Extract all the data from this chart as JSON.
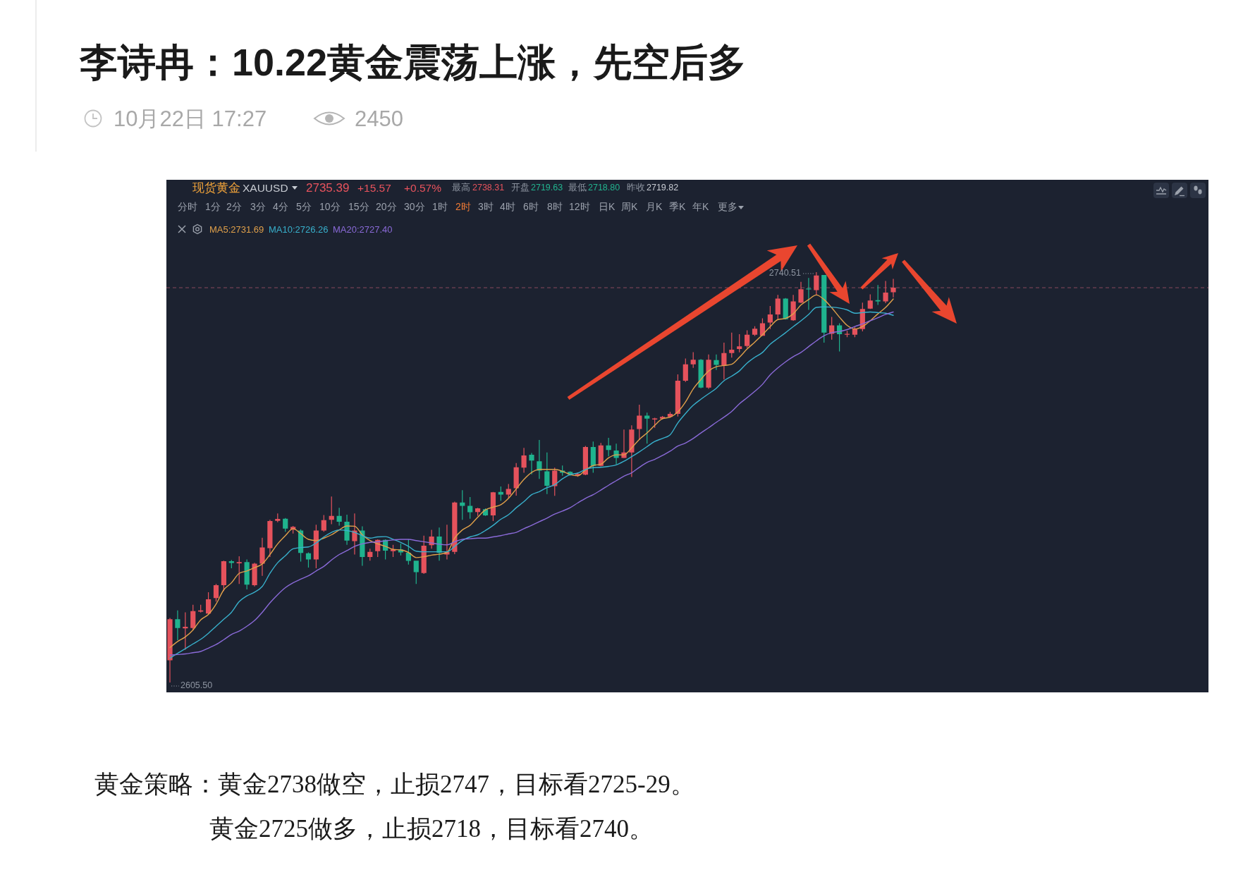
{
  "chart_data": {
    "type": "candlestick",
    "title": "李诗冉：10.22黄金震荡上涨，先空后多",
    "categories": [
      null,
      null,
      null,
      null,
      null,
      null,
      null,
      null,
      null,
      null,
      null,
      null,
      null,
      null,
      null,
      null,
      null,
      null,
      null,
      null,
      null,
      null,
      null,
      null,
      null,
      null,
      null,
      null,
      null,
      null,
      null,
      null,
      null,
      null,
      null,
      null,
      null,
      null,
      null,
      null,
      null,
      null,
      null,
      null,
      null,
      null,
      null,
      null,
      null,
      null,
      null,
      null,
      null,
      null,
      null,
      null,
      null,
      null,
      null,
      null,
      null,
      null,
      null,
      null,
      null,
      null,
      null,
      null,
      null,
      null,
      null,
      null,
      null,
      null,
      null,
      null,
      null,
      null,
      null,
      null,
      null,
      null,
      null,
      null,
      null,
      null,
      null,
      null,
      null,
      null,
      null,
      null,
      null,
      null,
      null
    ],
    "ohlc": [
      [
        2612.8,
        2626.7,
        2605.5,
        2626.3
      ],
      [
        2626.3,
        2629.2,
        2619.4,
        2623.4
      ],
      [
        2623.3,
        2628.6,
        2616.3,
        2623.8
      ],
      [
        2623.4,
        2631.1,
        2622.8,
        2629.0
      ],
      [
        2628.8,
        2631.1,
        2628.5,
        2629.2
      ],
      [
        2628.2,
        2635.2,
        2627.9,
        2632.9
      ],
      [
        2633.3,
        2637.9,
        2632.1,
        2637.5
      ],
      [
        2637.5,
        2645.6,
        2635.6,
        2645.4
      ],
      [
        2645.4,
        2645.8,
        2643.1,
        2644.8
      ],
      [
        2644.7,
        2647.0,
        2637.9,
        2645.1
      ],
      [
        2645.1,
        2646.0,
        2636.1,
        2637.7
      ],
      [
        2637.5,
        2644.9,
        2637.1,
        2644.6
      ],
      [
        2644.6,
        2653.1,
        2640.6,
        2649.9
      ],
      [
        2649.7,
        2659.0,
        2646.8,
        2658.6
      ],
      [
        2658.7,
        2661.1,
        2658.2,
        2659.3
      ],
      [
        2659.4,
        2659.6,
        2655.1,
        2656.1
      ],
      [
        2655.8,
        2657.0,
        2654.5,
        2656.7
      ],
      [
        2655.5,
        2655.9,
        2645.3,
        2648.1
      ],
      [
        2648.0,
        2648.3,
        2643.3,
        2646.0
      ],
      [
        2646.0,
        2657.4,
        2643.1,
        2655.5
      ],
      [
        2655.5,
        2660.6,
        2655.1,
        2658.9
      ],
      [
        2659.0,
        2666.7,
        2657.6,
        2660.3
      ],
      [
        2660.3,
        2663.0,
        2657.1,
        2658.4
      ],
      [
        2658.4,
        2660.7,
        2650.8,
        2652.2
      ],
      [
        2652.0,
        2661.1,
        2647.6,
        2655.5
      ],
      [
        2655.5,
        2656.9,
        2643.9,
        2646.8
      ],
      [
        2646.8,
        2649.5,
        2645.6,
        2648.5
      ],
      [
        2648.7,
        2652.6,
        2646.8,
        2652.4
      ],
      [
        2652.4,
        2652.6,
        2646.0,
        2648.9
      ],
      [
        2648.7,
        2650.8,
        2646.8,
        2649.3
      ],
      [
        2649.3,
        2651.2,
        2647.3,
        2648.3
      ],
      [
        2648.2,
        2652.6,
        2644.3,
        2645.5
      ],
      [
        2645.6,
        2645.6,
        2637.9,
        2641.8
      ],
      [
        2641.5,
        2653.8,
        2641.2,
        2650.5
      ],
      [
        2650.7,
        2655.7,
        2649.5,
        2653.5
      ],
      [
        2653.5,
        2656.5,
        2645.6,
        2648.2
      ],
      [
        2647.6,
        2657.4,
        2646.0,
        2648.5
      ],
      [
        2648.5,
        2665.0,
        2647.7,
        2664.7
      ],
      [
        2664.7,
        2668.8,
        2659.0,
        2663.6
      ],
      [
        2663.6,
        2666.5,
        2659.4,
        2661.5
      ],
      [
        2661.6,
        2663.0,
        2660.3,
        2662.8
      ],
      [
        2662.5,
        2662.8,
        2660.3,
        2660.5
      ],
      [
        2660.5,
        2668.2,
        2658.6,
        2668.1
      ],
      [
        2668.2,
        2670.0,
        2665.3,
        2667.3
      ],
      [
        2667.3,
        2670.8,
        2666.1,
        2669.2
      ],
      [
        2669.4,
        2677.7,
        2667.0,
        2676.3
      ],
      [
        2676.2,
        2682.7,
        2674.5,
        2680.2
      ],
      [
        2680.4,
        2681.0,
        2674.0,
        2678.5
      ],
      [
        2678.3,
        2685.3,
        2672.5,
        2675.2
      ],
      [
        2675.0,
        2681.2,
        2667.5,
        2670.2
      ],
      [
        2670.1,
        2676.2,
        2666.9,
        2675.2
      ],
      [
        2675.2,
        2676.9,
        2673.5,
        2674.5
      ],
      [
        2674.8,
        2675.0,
        2673.5,
        2673.9
      ],
      [
        2673.7,
        2674.6,
        2673.2,
        2674.1
      ],
      [
        2673.9,
        2683.3,
        2673.7,
        2683.0
      ],
      [
        2683.0,
        2684.8,
        2674.5,
        2676.8
      ],
      [
        2676.8,
        2684.3,
        2676.6,
        2683.5
      ],
      [
        2683.5,
        2686.0,
        2679.9,
        2682.0
      ],
      [
        2681.8,
        2684.1,
        2677.3,
        2679.4
      ],
      [
        2679.4,
        2688.7,
        2679.3,
        2681.2
      ],
      [
        2681.2,
        2690.1,
        2673.1,
        2688.7
      ],
      [
        2688.9,
        2696.9,
        2685.3,
        2693.3
      ],
      [
        2693.3,
        2694.3,
        2684.1,
        2692.3
      ],
      [
        2692.0,
        2692.6,
        2689.3,
        2692.4
      ],
      [
        2692.3,
        2693.2,
        2692.0,
        2692.9
      ],
      [
        2692.9,
        2694.5,
        2692.6,
        2693.9
      ],
      [
        2693.9,
        2706.9,
        2693.0,
        2704.8
      ],
      [
        2704.8,
        2712.1,
        2704.4,
        2710.2
      ],
      [
        2710.2,
        2714.2,
        2709.0,
        2711.7
      ],
      [
        2711.7,
        2711.9,
        2702.3,
        2702.5
      ],
      [
        2702.5,
        2713.4,
        2702.1,
        2711.7
      ],
      [
        2711.6,
        2713.4,
        2708.3,
        2710.0
      ],
      [
        2709.8,
        2717.3,
        2705.2,
        2713.9
      ],
      [
        2713.9,
        2720.6,
        2712.4,
        2715.0
      ],
      [
        2715.2,
        2720.1,
        2714.1,
        2716.1
      ],
      [
        2716.2,
        2721.4,
        2715.6,
        2719.9
      ],
      [
        2719.9,
        2722.7,
        2719.5,
        2721.9
      ],
      [
        2719.6,
        2725.3,
        2719.5,
        2723.7
      ],
      [
        2723.9,
        2729.4,
        2721.8,
        2726.6
      ],
      [
        2726.6,
        2733.0,
        2725.0,
        2731.8
      ],
      [
        2731.8,
        2732.0,
        2724.9,
        2725.0
      ],
      [
        2724.7,
        2733.0,
        2724.5,
        2730.9
      ],
      [
        2730.5,
        2737.3,
        2730.3,
        2734.9
      ],
      [
        2735.1,
        2738.6,
        2728.1,
        2734.8
      ],
      [
        2734.6,
        2740.51,
        2733.0,
        2739.4
      ],
      [
        2739.6,
        2739.6,
        2717.3,
        2720.6
      ],
      [
        2720.2,
        2725.8,
        2718.3,
        2723.0
      ],
      [
        2723.0,
        2723.7,
        2714.4,
        2720.1
      ],
      [
        2719.9,
        2721.2,
        2719.1,
        2720.2
      ],
      [
        2719.9,
        2722.6,
        2719.1,
        2721.8
      ],
      [
        2721.8,
        2730.5,
        2721.0,
        2728.4
      ],
      [
        2728.5,
        2733.2,
        2728.4,
        2731.2
      ],
      [
        2731.3,
        2736.3,
        2729.7,
        2730.9
      ],
      [
        2730.9,
        2737.6,
        2730.3,
        2733.8
      ],
      [
        2733.9,
        2738.3,
        2732.2,
        2735.39
      ]
    ],
    "colors": [
      "#e5525c",
      "#1fb38e",
      "#e5525c",
      "#e5525c",
      "#e5525c",
      "#e5525c",
      "#e5525c",
      "#e5525c",
      "#1fb38e",
      "#e5525c",
      "#1fb38e",
      "#e5525c",
      "#e5525c",
      "#e5525c",
      "#e5525c",
      "#1fb38e",
      "#e5525c",
      "#1fb38e",
      "#1fb38e",
      "#e5525c",
      "#e5525c",
      "#e5525c",
      "#1fb38e",
      "#1fb38e",
      "#e5525c",
      "#1fb38e",
      "#e5525c",
      "#e5525c",
      "#1fb38e",
      "#e5525c",
      "#1fb38e",
      "#1fb38e",
      "#1fb38e",
      "#e5525c",
      "#e5525c",
      "#1fb38e",
      "#e5525c",
      "#e5525c",
      "#1fb38e",
      "#1fb38e",
      "#e5525c",
      "#1fb38e",
      "#e5525c",
      "#1fb38e",
      "#e5525c",
      "#e5525c",
      "#e5525c",
      "#1fb38e",
      "#1fb38e",
      "#1fb38e",
      "#e5525c",
      "#1fb38e",
      "#1fb38e",
      "#e5525c",
      "#e5525c",
      "#1fb38e",
      "#e5525c",
      "#1fb38e",
      "#1fb38e",
      "#e5525c",
      "#e5525c",
      "#e5525c",
      "#1fb38e",
      "#e5525c",
      "#e5525c",
      "#e5525c",
      "#e5525c",
      "#e5525c",
      "#e5525c",
      "#1fb38e",
      "#e5525c",
      "#1fb38e",
      "#e5525c",
      "#e5525c",
      "#e5525c",
      "#e5525c",
      "#e5525c",
      "#e5525c",
      "#e5525c",
      "#e5525c",
      "#1fb38e",
      "#e5525c",
      "#e5525c",
      "#1fb38e",
      "#e5525c",
      "#1fb38e",
      "#e5525c",
      "#1fb38e",
      "#e5525c",
      "#e5525c",
      "#e5525c",
      "#e5525c",
      "#1fb38e",
      "#e5525c",
      "#e5525c"
    ],
    "series": [
      {
        "name": "MA5:2731.69",
        "type": "line",
        "color": "#e0a04a",
        "values": [
          2617.0,
          2619.0,
          2620.5,
          2622.8,
          2626.1,
          2627.9,
          2631.3,
          2636.0,
          2638.3,
          2641.4,
          2642.2,
          2643.3,
          2644.5,
          2647.6,
          2651.1,
          2653.8,
          2656.1,
          2654.5,
          2652.6,
          2652.2,
          2653.0,
          2654.1,
          2655.7,
          2657.0,
          2656.9,
          2654.1,
          2652.2,
          2651.1,
          2650.3,
          2649.3,
          2649.1,
          2648.3,
          2646.6,
          2646.9,
          2647.4,
          2647.7,
          2648.3,
          2653.0,
          2655.7,
          2657.2,
          2659.9,
          2662.3,
          2663.2,
          2664.0,
          2666.1,
          2669.2,
          2672.3,
          2674.6,
          2675.6,
          2675.6,
          2675.6,
          2675.0,
          2673.9,
          2673.5,
          2675.4,
          2676.9,
          2677.3,
          2679.4,
          2680.4,
          2680.4,
          2682.7,
          2685.5,
          2687.6,
          2690.1,
          2692.3,
          2692.8,
          2694.5,
          2697.8,
          2702.1,
          2705.2,
          2708.0,
          2709.4,
          2709.8,
          2710.2,
          2712.5,
          2715.2,
          2717.5,
          2719.9,
          2722.6,
          2724.9,
          2725.3,
          2726.8,
          2729.7,
          2731.5,
          2733.0,
          2731.5,
          2728.8,
          2725.7,
          2723.0,
          2721.8,
          2722.6,
          2724.5,
          2726.8,
          2728.9,
          2731.7
        ]
      },
      {
        "name": "MA10:2726.26",
        "type": "line",
        "color": "#38b0cc",
        "values": [
          2613.5,
          2615.1,
          2616.6,
          2618.2,
          2619.7,
          2621.7,
          2624.0,
          2626.3,
          2628.6,
          2632.1,
          2634.0,
          2635.2,
          2637.1,
          2641.4,
          2644.9,
          2647.2,
          2649.5,
          2649.9,
          2650.1,
          2651.4,
          2653.4,
          2654.9,
          2655.7,
          2655.5,
          2654.9,
          2653.8,
          2653.0,
          2653.4,
          2653.5,
          2652.6,
          2651.6,
          2650.3,
          2648.7,
          2648.5,
          2648.5,
          2648.5,
          2648.5,
          2650.3,
          2652.2,
          2653.4,
          2654.1,
          2655.5,
          2657.2,
          2659.2,
          2660.7,
          2663.0,
          2665.0,
          2667.3,
          2668.3,
          2669.6,
          2670.6,
          2672.5,
          2673.9,
          2674.4,
          2675.6,
          2676.2,
          2676.3,
          2676.6,
          2677.1,
          2678.3,
          2679.8,
          2681.4,
          2683.1,
          2684.8,
          2685.8,
          2687.0,
          2690.9,
          2694.0,
          2696.7,
          2698.7,
          2700.5,
          2702.3,
          2704.8,
          2706.3,
          2708.0,
          2710.6,
          2712.5,
          2714.1,
          2716.8,
          2718.7,
          2720.6,
          2722.6,
          2724.5,
          2726.6,
          2728.9,
          2729.1,
          2729.0,
          2728.7,
          2728.1,
          2727.0,
          2727.2,
          2727.4,
          2727.2,
          2727.0,
          2726.3
        ]
      },
      {
        "name": "MA20:2727.40",
        "type": "line",
        "color": "#8a6ad8",
        "values": [
          2614.5,
          2614.7,
          2614.9,
          2615.3,
          2615.7,
          2616.8,
          2618.0,
          2619.6,
          2621.3,
          2622.4,
          2624.0,
          2625.9,
          2628.6,
          2631.7,
          2634.4,
          2636.7,
          2638.3,
          2639.5,
          2640.6,
          2642.2,
          2643.7,
          2645.8,
          2647.6,
          2648.9,
          2650.3,
          2651.1,
          2651.6,
          2651.8,
          2652.1,
          2652.4,
          2652.6,
          2652.6,
          2652.2,
          2651.8,
          2651.4,
          2651.0,
          2650.8,
          2651.8,
          2652.6,
          2652.8,
          2653.0,
          2653.0,
          2653.4,
          2653.8,
          2654.4,
          2654.9,
          2656.1,
          2657.2,
          2658.4,
          2659.6,
          2660.9,
          2661.9,
          2663.0,
          2664.6,
          2666.1,
          2667.3,
          2668.8,
          2670.4,
          2671.9,
          2673.4,
          2674.5,
          2676.3,
          2677.9,
          2678.9,
          2680.2,
          2681.6,
          2683.3,
          2684.3,
          2685.8,
          2687.6,
          2689.3,
          2691.1,
          2692.8,
          2694.7,
          2697.2,
          2699.2,
          2701.3,
          2703.6,
          2706.7,
          2709.0,
          2711.0,
          2712.7,
          2714.1,
          2716.0,
          2717.9,
          2719.6,
          2720.6,
          2721.0,
          2721.6,
          2722.6,
          2723.5,
          2724.5,
          2725.5,
          2726.6,
          2727.4
        ]
      }
    ],
    "legend": "top left",
    "ref_lines": [
      {
        "axis": "y",
        "value": 2735.39,
        "color": "#8a4a5c",
        "line_style": "dashed"
      }
    ],
    "annotations": [
      "10月22日 17:27",
      "2450",
      "现货黄金",
      "XAUUSD",
      "2735.39",
      "+15.57",
      "+0.57%",
      "最高",
      "2738.31",
      "开盘",
      "2719.63",
      "最低",
      "2718.80",
      "昨收",
      "2719.82",
      "分时",
      "1分",
      "2分",
      "3分",
      "4分",
      "5分",
      "10分",
      "15分",
      "20分",
      "30分",
      "1时",
      "2时",
      "3时",
      "4时",
      "6时",
      "8时",
      "12时",
      "日K",
      "周K",
      "月K",
      "季K",
      "年K",
      "更多",
      "2740.51",
      "2605.50",
      "黄金策略：黄金2738做空，止损2747，目标看2725-29。",
      "黄金2725做多，止损2718，目标看2740。"
    ]
  }
}
